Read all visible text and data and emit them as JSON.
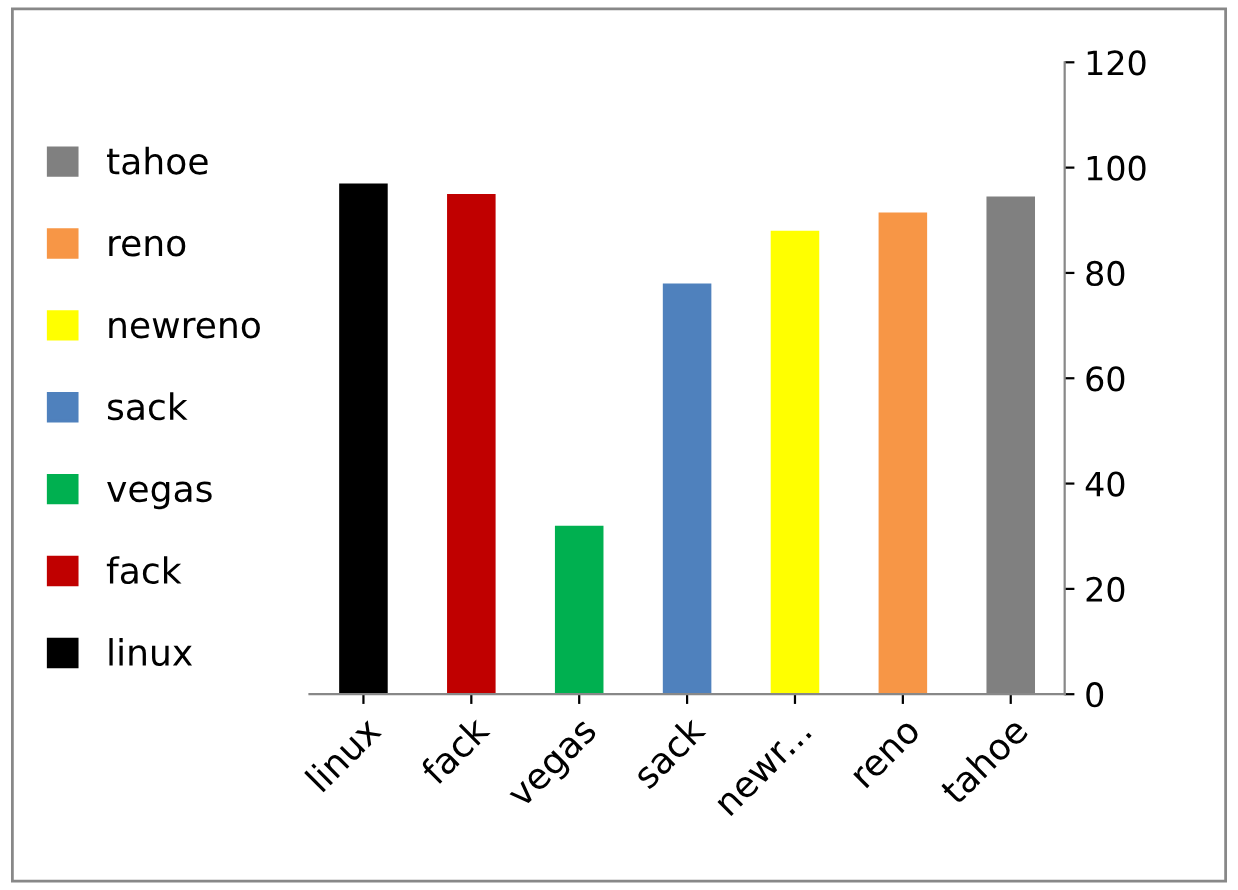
{
  "chart_data": {
    "type": "bar",
    "categories": [
      "linux",
      "fack",
      "vegas",
      "sack",
      "newr...",
      "reno",
      "tahoe"
    ],
    "series": [
      {
        "name": "linux",
        "color": "#000000",
        "values": [
          97,
          null,
          null,
          null,
          null,
          null,
          null
        ]
      },
      {
        "name": "fack",
        "color": "#c00000",
        "values": [
          null,
          95,
          null,
          null,
          null,
          null,
          null
        ]
      },
      {
        "name": "vegas",
        "color": "#00b050",
        "values": [
          null,
          null,
          32,
          null,
          null,
          null,
          null
        ]
      },
      {
        "name": "sack",
        "color": "#4f81bd",
        "values": [
          null,
          null,
          null,
          78,
          null,
          null,
          null
        ]
      },
      {
        "name": "newreno",
        "color": "#ffff00",
        "values": [
          null,
          null,
          null,
          null,
          88,
          null,
          null
        ]
      },
      {
        "name": "reno",
        "color": "#f79646",
        "values": [
          null,
          null,
          null,
          null,
          null,
          91.5,
          null
        ]
      },
      {
        "name": "tahoe",
        "color": "#808080",
        "values": [
          null,
          null,
          null,
          null,
          null,
          null,
          94.5
        ]
      }
    ],
    "ylim": [
      0,
      120
    ],
    "yticks": [
      0,
      20,
      40,
      60,
      80,
      100,
      120
    ],
    "grid": false,
    "legend": "left"
  }
}
